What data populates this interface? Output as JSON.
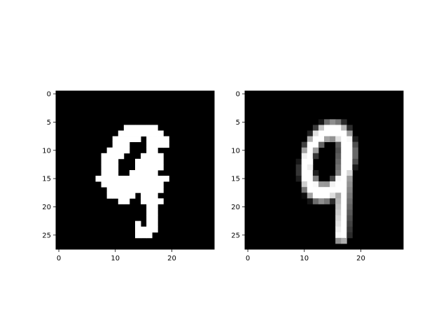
{
  "chart_data": [
    {
      "type": "heatmap",
      "colormap": "gray",
      "shape": [
        28,
        28
      ],
      "xticks": [
        0,
        10,
        20
      ],
      "yticks": [
        0,
        5,
        10,
        15,
        20,
        25
      ],
      "xlim": [
        -0.5,
        27.5
      ],
      "ylim": [
        27.5,
        -0.5
      ],
      "rows": [
        [
          6,
          12,
          17
        ],
        [
          7,
          11,
          18
        ],
        [
          8,
          10,
          14
        ],
        [
          8,
          16,
          19
        ],
        [
          9,
          10,
          12
        ],
        [
          9,
          16,
          19
        ],
        [
          10,
          9,
          12
        ],
        [
          10,
          16,
          17
        ],
        [
          11,
          8,
          11
        ],
        [
          11,
          15,
          18
        ],
        [
          12,
          8,
          10
        ],
        [
          12,
          14,
          18
        ],
        [
          13,
          8,
          10
        ],
        [
          13,
          14,
          18
        ],
        [
          14,
          8,
          10
        ],
        [
          14,
          13,
          17
        ],
        [
          15,
          7,
          11
        ],
        [
          15,
          12,
          19
        ],
        [
          16,
          8,
          18
        ],
        [
          17,
          9,
          14
        ],
        [
          17,
          15,
          18
        ],
        [
          18,
          9,
          13
        ],
        [
          18,
          15,
          17
        ],
        [
          19,
          11,
          12
        ],
        [
          19,
          15,
          18
        ],
        [
          20,
          16,
          17
        ],
        [
          21,
          16,
          17
        ],
        [
          22,
          16,
          17
        ],
        [
          23,
          14,
          14
        ],
        [
          23,
          16,
          17
        ],
        [
          24,
          14,
          17
        ],
        [
          25,
          14,
          16
        ]
      ]
    },
    {
      "type": "heatmap",
      "colormap": "gray",
      "shape": [
        28,
        28
      ],
      "xticks": [
        0,
        10,
        20
      ],
      "yticks": [
        0,
        5,
        10,
        15,
        20,
        25
      ],
      "xlim": [
        -0.5,
        27.5
      ],
      "ylim": [
        27.5,
        -0.5
      ],
      "strokes": [
        {
          "cx": 14.1,
          "cy": 12.0,
          "rx": 3.6,
          "ry": 5.6,
          "rot": 14,
          "w": 1.6
        },
        {
          "x1": 17.3,
          "y1": 9.0,
          "x2": 16.6,
          "y2": 25.2,
          "w": 1.3
        }
      ]
    }
  ]
}
